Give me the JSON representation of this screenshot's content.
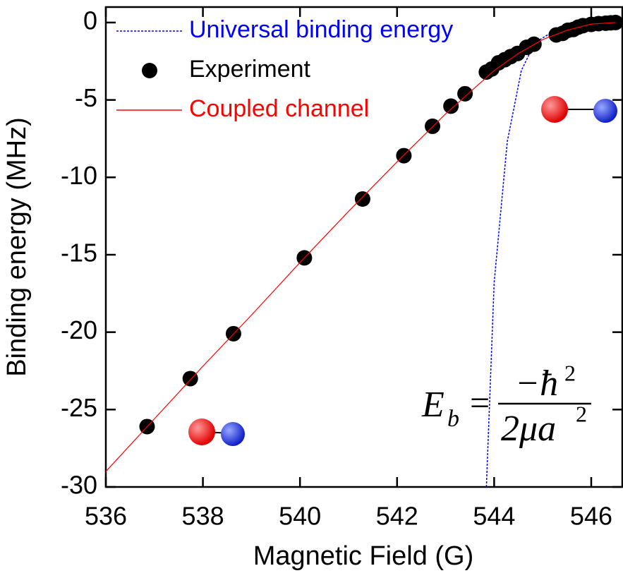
{
  "chart_data": {
    "type": "scatter",
    "xlabel": "Magnetic Field (G)",
    "ylabel": "Binding energy (MHz)",
    "xlim": [
      536,
      546.64
    ],
    "ylim": [
      -30,
      1
    ],
    "xticks": [
      536,
      538,
      540,
      542,
      544,
      546
    ],
    "yticks": [
      0,
      -5,
      -10,
      -15,
      -20,
      -25,
      -30
    ],
    "series": [
      {
        "name": "Universal binding energy",
        "type": "line",
        "style": "dotted",
        "color": "#0000ff",
        "x": [
          543.84,
          544.0,
          544.27,
          544.56,
          544.84,
          545.1,
          545.4,
          545.8,
          546.2,
          546.5
        ],
        "y": [
          -30,
          -16.8,
          -7.7,
          -3.1,
          -1.3,
          -0.8,
          -0.5,
          -0.25,
          -0.08,
          0
        ]
      },
      {
        "name": "Experiment",
        "type": "scatter",
        "color": "#000000",
        "x": [
          536.85,
          537.74,
          538.63,
          540.09,
          541.29,
          542.14,
          542.73,
          543.11,
          543.4,
          543.84,
          543.95,
          544.09,
          544.22,
          544.34,
          544.48,
          544.67,
          544.82,
          545.28,
          545.41,
          545.52,
          545.63,
          545.73,
          545.83,
          546.0,
          546.15,
          546.3,
          546.4,
          546.5
        ],
        "y": [
          -26.1,
          -23.0,
          -20.1,
          -15.2,
          -11.4,
          -8.6,
          -6.7,
          -5.4,
          -4.6,
          -3.2,
          -3.0,
          -2.6,
          -2.4,
          -2.2,
          -2.0,
          -1.6,
          -1.4,
          -0.8,
          -0.7,
          -0.5,
          -0.45,
          -0.3,
          -0.2,
          -0.12,
          -0.07,
          -0.04,
          -0.02,
          0
        ]
      },
      {
        "name": "Coupled channel",
        "type": "line",
        "style": "solid",
        "color": "#ff0000",
        "x": [
          536,
          537,
          538,
          539,
          540,
          541,
          542,
          543,
          544,
          544.5,
          545,
          545.5,
          546,
          546.5
        ],
        "y": [
          -29,
          -25.6,
          -22.2,
          -18.9,
          -15.5,
          -12.2,
          -9,
          -5.9,
          -3.1,
          -2.0,
          -1.1,
          -0.5,
          -0.1,
          0
        ]
      }
    ],
    "formula": {
      "lhs": "E",
      "sub": "b",
      "eq": "=",
      "num": "−ħ",
      "num_sup": "2",
      "den": "2μa",
      "den_sup": "2"
    }
  }
}
